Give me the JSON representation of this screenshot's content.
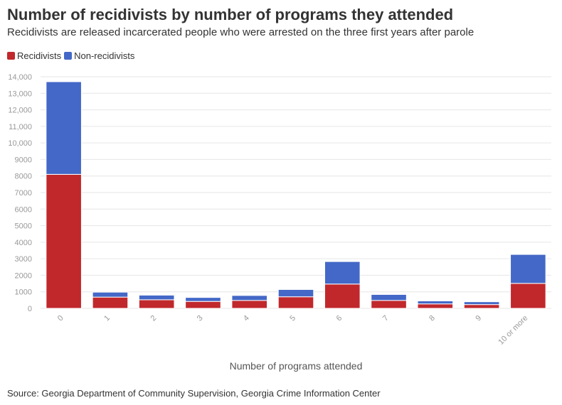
{
  "header": {
    "title": "Number of recidivists by number of programs they attended",
    "subtitle": "Recidivists are released incarcerated people who were arrested on the three first years after parole"
  },
  "footer": {
    "source": "Source: Georgia Department of Community Supervision, Georgia Crime Information Center"
  },
  "colors": {
    "recidivists": "#c0282c",
    "non_recidivists": "#4468c7",
    "grid": "#e6e6e6",
    "tick_text": "#999999"
  },
  "chart_data": {
    "type": "bar",
    "stacked": true,
    "categories": [
      "0",
      "1",
      "2",
      "3",
      "4",
      "5",
      "6",
      "7",
      "8",
      "9",
      "10 or more"
    ],
    "series": [
      {
        "name": "Recidivists",
        "values": [
          8100,
          680,
          520,
          420,
          480,
          700,
          1470,
          480,
          270,
          230,
          1510
        ]
      },
      {
        "name": "Non-recidivists",
        "values": [
          5600,
          300,
          280,
          240,
          300,
          440,
          1360,
          360,
          180,
          170,
          1750
        ]
      }
    ],
    "xlabel": "Number of programs attended",
    "ylabel": "",
    "ylim": [
      0,
      14000
    ],
    "yticks": [
      0,
      1000,
      2000,
      3000,
      4000,
      5000,
      6000,
      7000,
      8000,
      9000,
      10000,
      11000,
      12000,
      13000,
      14000
    ],
    "ytick_labels": [
      "0",
      "1000",
      "2000",
      "3000",
      "4000",
      "5000",
      "6000",
      "7000",
      "8000",
      "9000",
      "10,000",
      "11,000",
      "12,000",
      "13,000",
      "14,000"
    ],
    "grid": true,
    "legend": "top-left"
  }
}
